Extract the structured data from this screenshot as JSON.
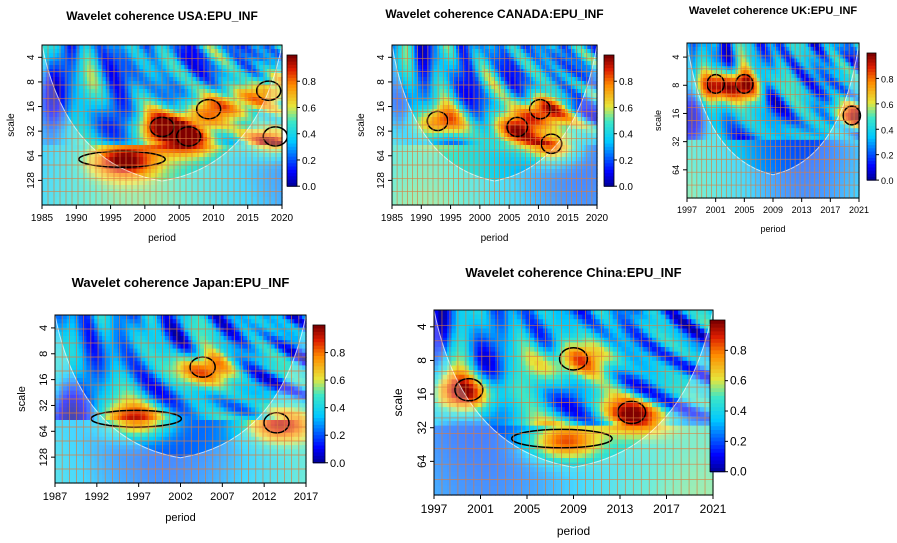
{
  "chart_data": [
    {
      "type": "heatmap",
      "title": "Wavelet coherence USA:EPU_INF",
      "xlabel": "period",
      "ylabel": "scale",
      "x_ticks": [
        "1985",
        "1990",
        "1995",
        "2000",
        "2005",
        "2010",
        "2015",
        "2020"
      ],
      "x_range": [
        1985,
        2021
      ],
      "y_ticks": [
        "4",
        "8",
        "16",
        "32",
        "64",
        "128"
      ],
      "colorbar_ticks": [
        "0.8",
        "0.6",
        "0.4",
        "0.2",
        "0.0"
      ],
      "value_range": [
        0,
        1
      ],
      "significant_regions": [
        {
          "x": 1997,
          "scale": 64,
          "label": "high coherence band"
        },
        {
          "x": 2007,
          "scale": 32,
          "label": "high coherence"
        },
        {
          "x": 2003,
          "scale": 24,
          "label": "high coherence"
        },
        {
          "x": 2010,
          "scale": 14,
          "label": "high coherence"
        },
        {
          "x": 2019,
          "scale": 8,
          "label": "high coherence"
        },
        {
          "x": 2020,
          "scale": 32,
          "label": "high coherence"
        }
      ]
    },
    {
      "type": "heatmap",
      "title": "Wavelet coherence CANADA:EPU_INF",
      "xlabel": "period",
      "ylabel": "scale",
      "x_ticks": [
        "1985",
        "1990",
        "1995",
        "2000",
        "2005",
        "2010",
        "2015",
        "2020"
      ],
      "x_range": [
        1985,
        2021
      ],
      "y_ticks": [
        "4",
        "8",
        "16",
        "32",
        "64",
        "128"
      ],
      "colorbar_ticks": [
        "0.8",
        "0.6",
        "0.4",
        "0.2",
        "0.0"
      ],
      "value_range": [
        0,
        1
      ],
      "significant_regions": [
        {
          "x": 2011,
          "scale": 14,
          "label": "high coherence"
        },
        {
          "x": 2007,
          "scale": 24,
          "label": "high coherence"
        },
        {
          "x": 2013,
          "scale": 40,
          "label": "high coherence"
        },
        {
          "x": 1993,
          "scale": 20,
          "label": "high coherence"
        }
      ]
    },
    {
      "type": "heatmap",
      "title": "Wavelet coherence UK:EPU_INF",
      "xlabel": "period",
      "ylabel": "scale",
      "x_ticks": [
        "1997",
        "2001",
        "2005",
        "2009",
        "2013",
        "2017",
        "2021"
      ],
      "x_range": [
        1997,
        2021
      ],
      "y_ticks": [
        "4",
        "8",
        "16",
        "32",
        "64"
      ],
      "colorbar_ticks": [
        "0.8",
        "0.6",
        "0.4",
        "0.2",
        "0.0"
      ],
      "value_range": [
        0,
        1
      ],
      "significant_regions": [
        {
          "x": 2001,
          "scale": 6,
          "label": "high coherence"
        },
        {
          "x": 2005,
          "scale": 6,
          "label": "high coherence"
        },
        {
          "x": 2020,
          "scale": 14,
          "label": "high coherence"
        }
      ]
    },
    {
      "type": "heatmap",
      "title": "Wavelet coherence Japan:EPU_INF",
      "xlabel": "period",
      "ylabel": "scale",
      "x_ticks": [
        "1987",
        "1992",
        "1997",
        "2002",
        "2007",
        "2012",
        "2017"
      ],
      "x_range": [
        1987,
        2021
      ],
      "y_ticks": [
        "4",
        "8",
        "16",
        "32",
        "64",
        "128"
      ],
      "colorbar_ticks": [
        "0.8",
        "0.6",
        "0.4",
        "0.2",
        "0.0"
      ],
      "value_range": [
        0,
        1
      ],
      "significant_regions": [
        {
          "x": 1998,
          "scale": 40,
          "label": "high coherence band"
        },
        {
          "x": 2007,
          "scale": 9,
          "label": "high coherence"
        },
        {
          "x": 2017,
          "scale": 45,
          "label": "high coherence"
        }
      ]
    },
    {
      "type": "heatmap",
      "title": "Wavelet coherence China:EPU_INF",
      "xlabel": "period",
      "ylabel": "scale",
      "x_ticks": [
        "1997",
        "2001",
        "2005",
        "2009",
        "2013",
        "2017",
        "2021"
      ],
      "x_range": [
        1997,
        2021
      ],
      "y_ticks": [
        "4",
        "8",
        "16",
        "32",
        "64"
      ],
      "colorbar_ticks": [
        "0.8",
        "0.6",
        "0.4",
        "0.2",
        "0.0"
      ],
      "value_range": [
        0,
        1
      ],
      "significant_regions": [
        {
          "x": 2008,
          "scale": 36,
          "label": "high coherence band"
        },
        {
          "x": 2000,
          "scale": 12,
          "label": "high coherence"
        },
        {
          "x": 2009,
          "scale": 6,
          "label": "high coherence"
        },
        {
          "x": 2014,
          "scale": 20,
          "label": "high coherence"
        }
      ]
    }
  ]
}
